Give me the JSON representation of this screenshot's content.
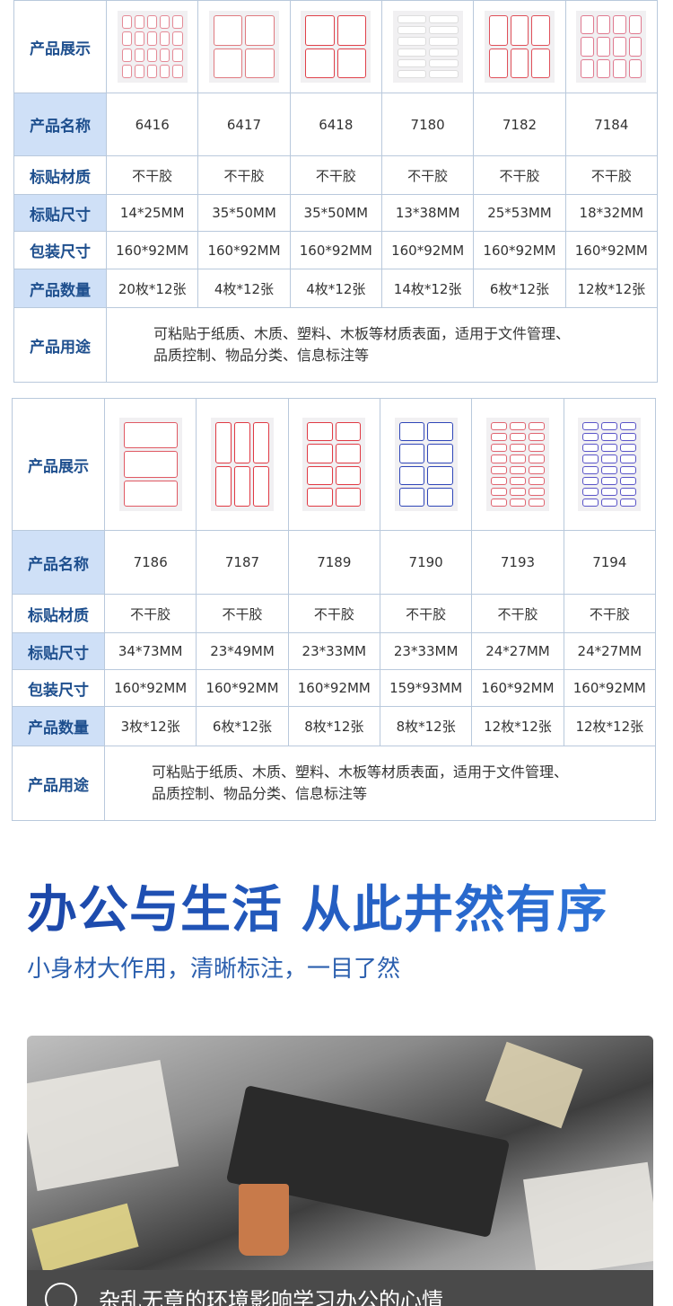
{
  "labels": {
    "display": "产品展示",
    "name": "产品名称",
    "material": "标贴材质",
    "size": "标贴尺寸",
    "pack": "包装尺寸",
    "qty": "产品数量",
    "usage": "产品用途"
  },
  "table1": {
    "products": [
      {
        "name": "6416",
        "material": "不干胶",
        "size": "14*25MM",
        "pack": "160*92MM",
        "qty": "20枚*12张",
        "color": "#e58a96"
      },
      {
        "name": "6417",
        "material": "不干胶",
        "size": "35*50MM",
        "pack": "160*92MM",
        "qty": "4枚*12张",
        "color": "#e07a80"
      },
      {
        "name": "6418",
        "material": "不干胶",
        "size": "35*50MM",
        "pack": "160*92MM",
        "qty": "4枚*12张",
        "color": "#e0414a"
      },
      {
        "name": "7180",
        "material": "不干胶",
        "size": "13*38MM",
        "pack": "160*92MM",
        "qty": "14枚*12张",
        "color": "#dddddd"
      },
      {
        "name": "7182",
        "material": "不干胶",
        "size": "25*53MM",
        "pack": "160*92MM",
        "qty": "6枚*12张",
        "color": "#e0505a"
      },
      {
        "name": "7184",
        "material": "不干胶",
        "size": "18*32MM",
        "pack": "160*92MM",
        "qty": "12枚*12张",
        "color": "#e07a90"
      }
    ],
    "usage_line1": "可粘贴于纸质、木质、塑料、木板等材质表面，适用于文件管理、",
    "usage_line2": "品质控制、物品分类、信息标注等"
  },
  "table2": {
    "products": [
      {
        "name": "7186",
        "material": "不干胶",
        "size": "34*73MM",
        "pack": "160*92MM",
        "qty": "3枚*12张",
        "color": "#e05a64"
      },
      {
        "name": "7187",
        "material": "不干胶",
        "size": "23*49MM",
        "pack": "160*92MM",
        "qty": "6枚*12张",
        "color": "#e03a44"
      },
      {
        "name": "7189",
        "material": "不干胶",
        "size": "23*33MM",
        "pack": "160*92MM",
        "qty": "8枚*12张",
        "color": "#e03a44"
      },
      {
        "name": "7190",
        "material": "不干胶",
        "size": "23*33MM",
        "pack": "159*93MM",
        "qty": "8枚*12张",
        "color": "#2f46b8"
      },
      {
        "name": "7193",
        "material": "不干胶",
        "size": "24*27MM",
        "pack": "160*92MM",
        "qty": "12枚*12张",
        "color": "#e06470"
      },
      {
        "name": "7194",
        "material": "不干胶",
        "size": "24*27MM",
        "pack": "160*92MM",
        "qty": "12枚*12张",
        "color": "#5a55c8"
      }
    ],
    "usage_line1": "可粘贴于纸质、木质、塑料、木板等材质表面，适用于文件管理、",
    "usage_line2": "品质控制、物品分类、信息标注等"
  },
  "headline": "办公与生活 从此井然有序",
  "subtitle": "小身材大作用，清晰标注，一目了然",
  "photo_caption": "杂乱无章的环境影响学习办公的心情",
  "caption_icon": "sad-face-icon",
  "accent_color": "#1f4fb0"
}
